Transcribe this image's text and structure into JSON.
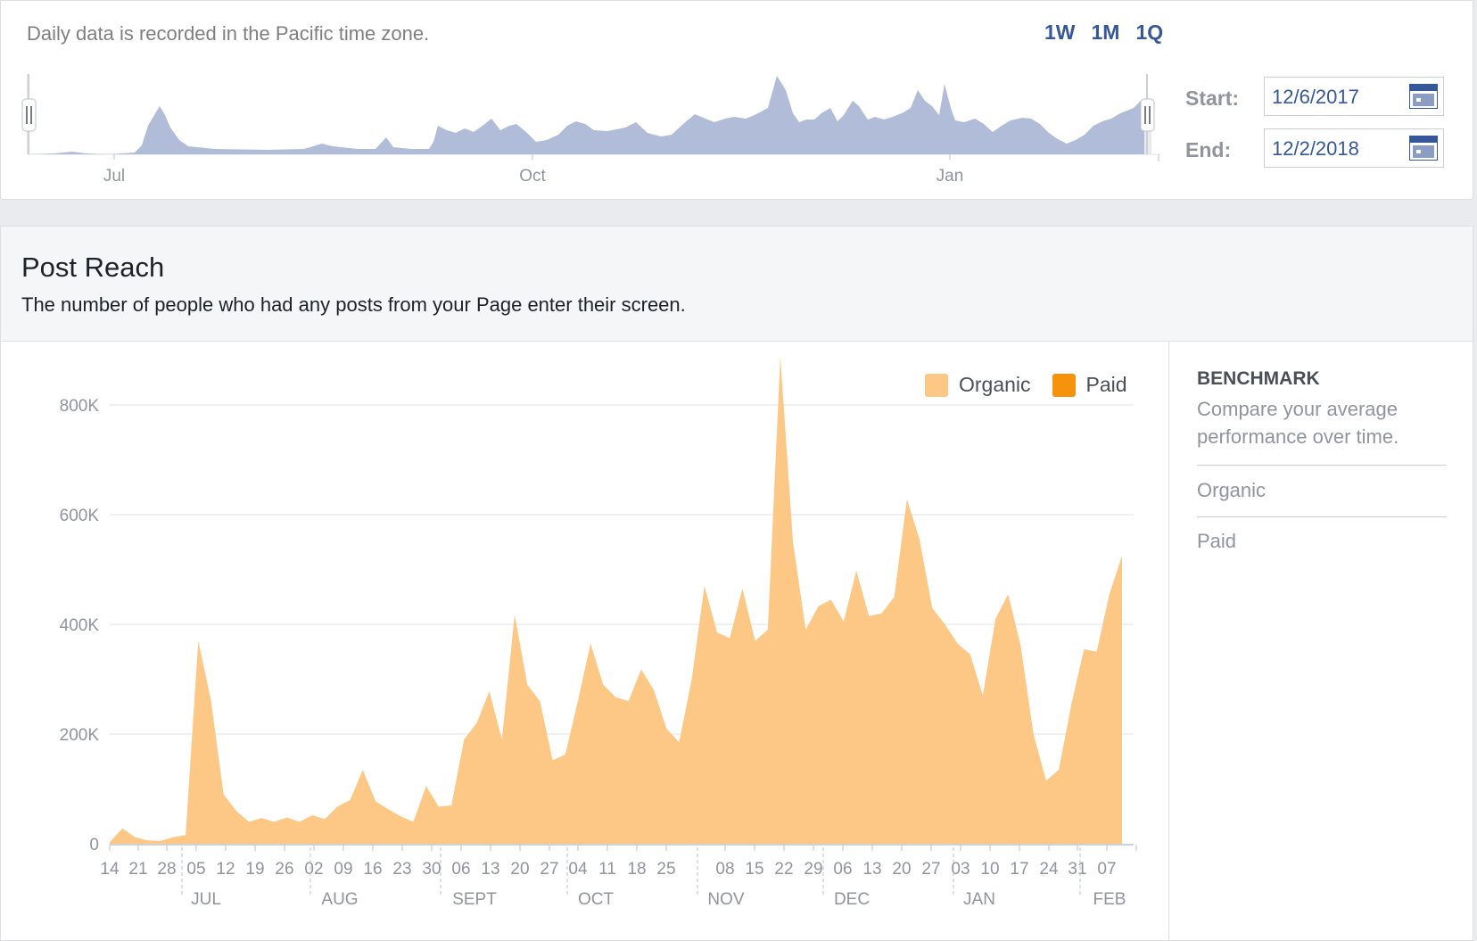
{
  "overview": {
    "timezone_note": "Daily data is recorded in the Pacific time zone.",
    "range_buttons": [
      "1W",
      "1M",
      "1Q"
    ],
    "timeline_ticks": [
      "Jul",
      "Oct",
      "Jan"
    ],
    "start_label": "Start:",
    "start_value": "12/6/2017",
    "end_label": "End:",
    "end_value": "12/2/2018"
  },
  "post_reach": {
    "title": "Post Reach",
    "description": "The number of people who had any posts from your Page enter their screen."
  },
  "benchmark": {
    "title": "BENCHMARK",
    "description": "Compare your average performance over time.",
    "items": [
      "Organic",
      "Paid"
    ]
  },
  "colors": {
    "organic": "#fdc886",
    "paid": "#f7930b",
    "overview_area": "#b0bcd8",
    "accent": "#365899"
  },
  "chart_data": {
    "type": "area",
    "legend": [
      "Organic",
      "Paid"
    ],
    "legend_position": "top-right",
    "ylim": [
      0,
      880000
    ],
    "yticks": [
      0,
      200000,
      400000,
      600000,
      800000
    ],
    "ytick_labels": [
      "0",
      "200K",
      "400K",
      "600K",
      "800K"
    ],
    "grid": true,
    "xtick_labels": [
      "14",
      "21",
      "28",
      "05",
      "12",
      "19",
      "26",
      "02",
      "09",
      "16",
      "23",
      "30",
      "06",
      "13",
      "20",
      "27",
      "04",
      "11",
      "18",
      "25",
      "08",
      "15",
      "22",
      "29",
      "06",
      "13",
      "20",
      "27",
      "03",
      "10",
      "17",
      "24",
      "31",
      "07"
    ],
    "month_labels": [
      "JUL",
      "AUG",
      "SEPT",
      "OCT",
      "NOV",
      "DEC",
      "JAN",
      "FEB"
    ],
    "series": [
      {
        "name": "Organic",
        "values": [
          3000,
          28000,
          12000,
          6000,
          5000,
          12000,
          16000,
          370000,
          262000,
          90000,
          60000,
          40000,
          47000,
          40000,
          48000,
          40000,
          52000,
          45000,
          68000,
          80000,
          135000,
          78000,
          63000,
          50000,
          40000,
          105000,
          68000,
          70000,
          190000,
          220000,
          278000,
          190000,
          418000,
          290000,
          260000,
          152000,
          163000,
          260000,
          365000,
          290000,
          267000,
          260000,
          318000,
          280000,
          210000,
          185000,
          300000,
          470000,
          385000,
          375000,
          465000,
          370000,
          390000,
          888000,
          550000,
          390000,
          433000,
          445000,
          405000,
          498000,
          415000,
          420000,
          450000,
          628000,
          555000,
          430000,
          400000,
          365000,
          345000,
          270000,
          410000,
          455000,
          360000,
          200000,
          115000,
          135000,
          255000,
          355000,
          350000,
          455000,
          525000
        ]
      },
      {
        "name": "Paid",
        "values": []
      }
    ]
  }
}
